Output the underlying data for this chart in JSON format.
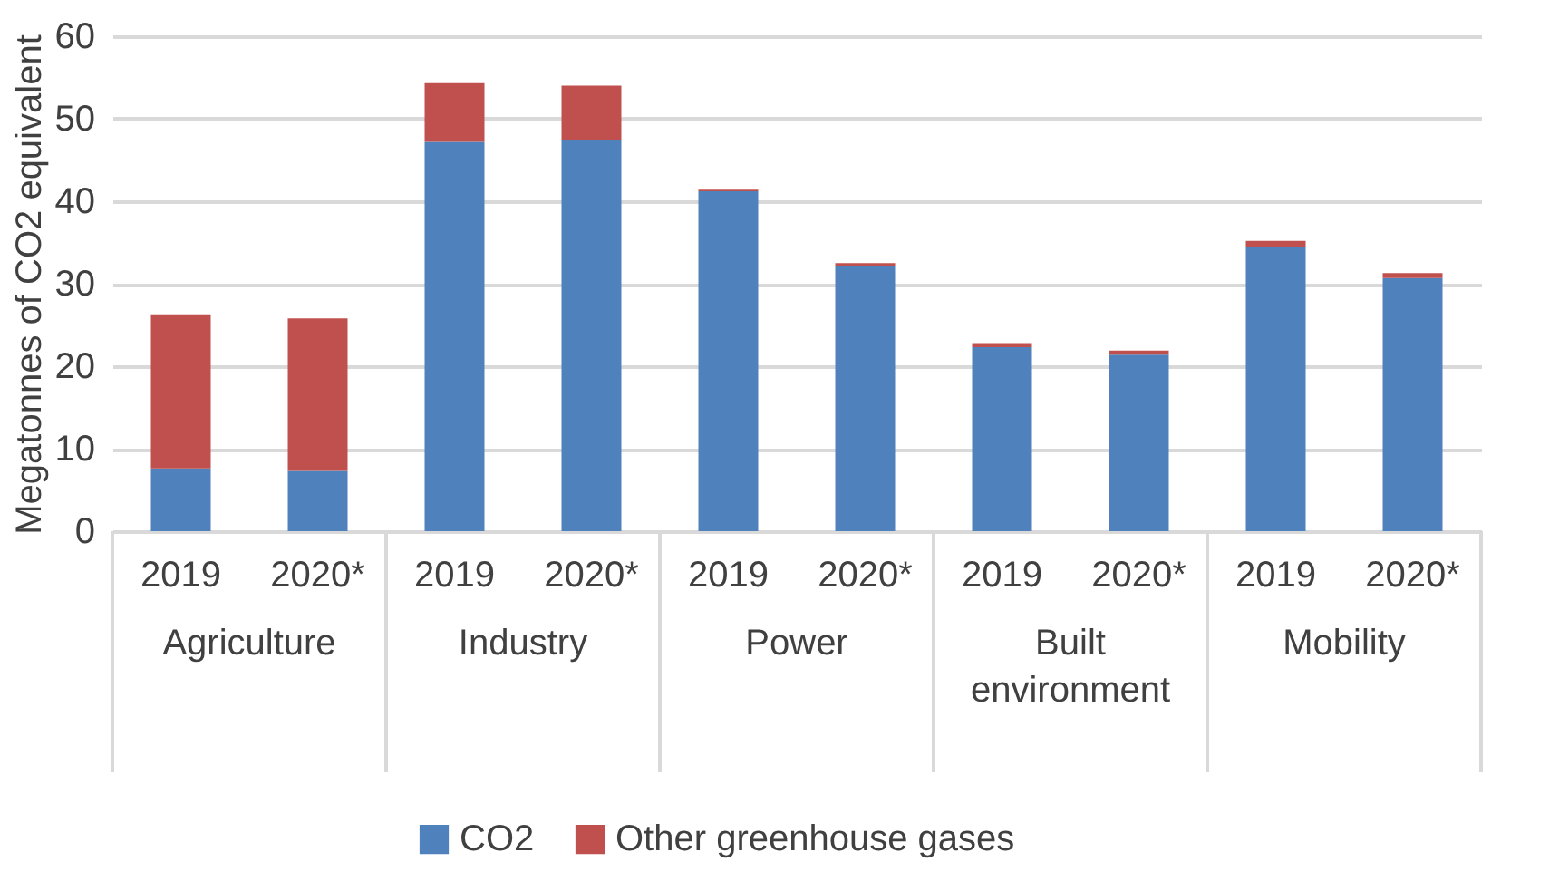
{
  "chart_data": {
    "type": "bar",
    "stacked": true,
    "ylabel": "Megatonnes of CO2 equivalent",
    "categories": [
      "2019",
      "2020*",
      "2019",
      "2020*",
      "2019",
      "2020*",
      "2019",
      "2020*",
      "2019",
      "2020*"
    ],
    "series": [
      {
        "name": "CO2",
        "color": "#4f81bd",
        "values": [
          7.6,
          7.3,
          47.2,
          47.4,
          41.2,
          32.2,
          22.3,
          21.4,
          34.4,
          30.7
        ]
      },
      {
        "name": "Other greenhouse gases",
        "color": "#c0504d",
        "values": [
          18.7,
          18.5,
          7.1,
          6.6,
          0.2,
          0.3,
          0.5,
          0.5,
          0.8,
          0.6
        ]
      }
    ],
    "annotations": [
      "Agriculture",
      "Industry",
      "Power",
      "Built environment",
      "Mobility"
    ],
    "ylim": [
      0,
      60
    ],
    "yticks": [
      0,
      10,
      20,
      30,
      40,
      50,
      60
    ],
    "grid": "y",
    "legend": "bottom"
  }
}
